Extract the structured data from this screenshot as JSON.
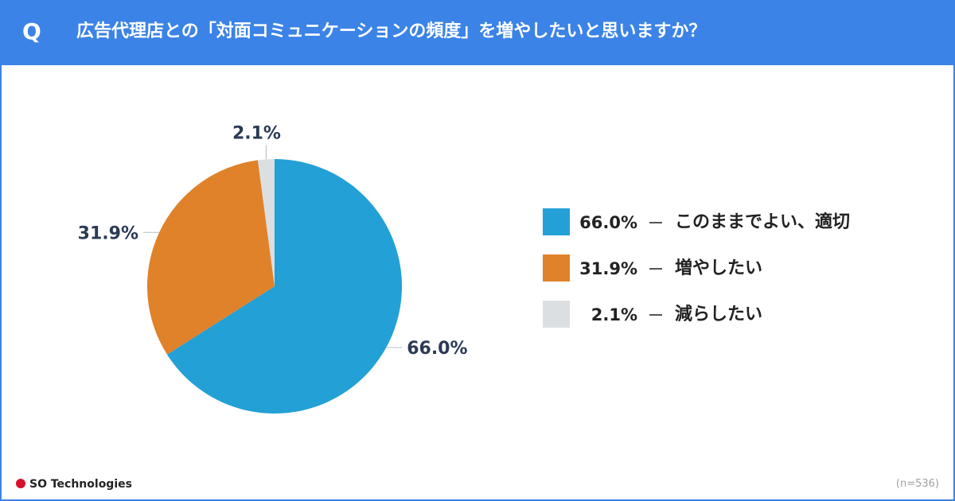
{
  "header": {
    "q_label": "Q",
    "title": "広告代理店との「対面コミュニケーションの頻度」を増やしたいと思いますか？",
    "background": "#3b83e6"
  },
  "chart_data": {
    "type": "pie",
    "start": "12 o'clock, clockwise",
    "slices": [
      {
        "label": "このままでよい、適切",
        "value": 66.0,
        "display": "66.0%",
        "color": "#23a0d5"
      },
      {
        "label": "増やしたい",
        "value": 31.9,
        "display": "31.9%",
        "color": "#e0822a"
      },
      {
        "label": "減らしたい",
        "value": 2.1,
        "display": "2.1%",
        "color": "#dcdfe1"
      }
    ],
    "legend_position": "right"
  },
  "footer": {
    "brand": "SO Technologies",
    "note": "(n=536)"
  }
}
